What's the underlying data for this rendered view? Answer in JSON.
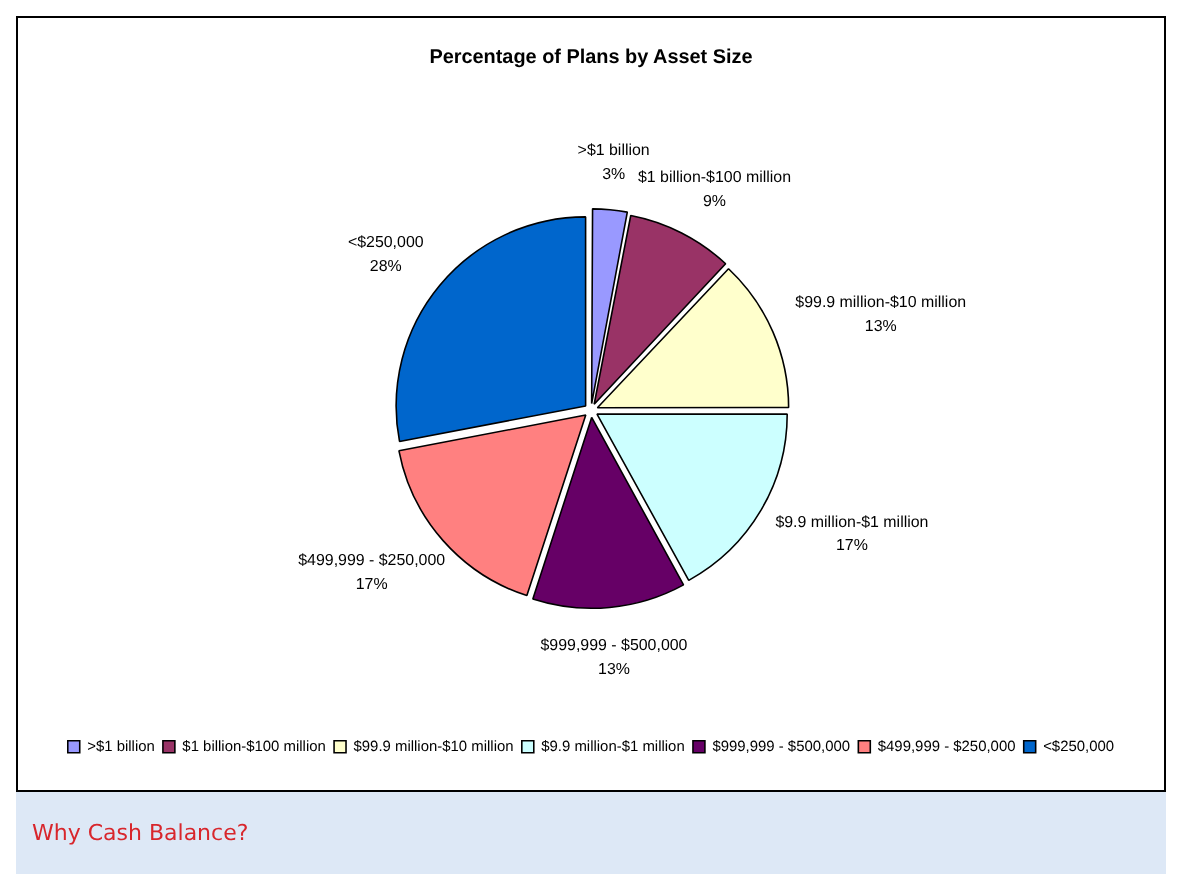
{
  "chart_data": {
    "type": "pie",
    "title": "Percentage of Plans by Asset Size",
    "categories": [
      ">$1 billion",
      "$1 billion-$100 million",
      "$99.9 million-$10 million",
      "$9.9 million-$1 million",
      "$999,999 - $500,000",
      "$499,999 - $250,000",
      "<$250,000"
    ],
    "values": [
      3,
      9,
      13,
      17,
      13,
      17,
      28
    ],
    "value_labels": [
      "3%",
      "9%",
      "13%",
      "17%",
      "13%",
      "17%",
      "28%"
    ],
    "colors": [
      "#9999ff",
      "#993366",
      "#ffffcc",
      "#ccffff",
      "#660066",
      "#ff8080",
      "#0066cc"
    ],
    "legend": "bottom",
    "annotations": [
      "Why Cash Balance?"
    ]
  }
}
